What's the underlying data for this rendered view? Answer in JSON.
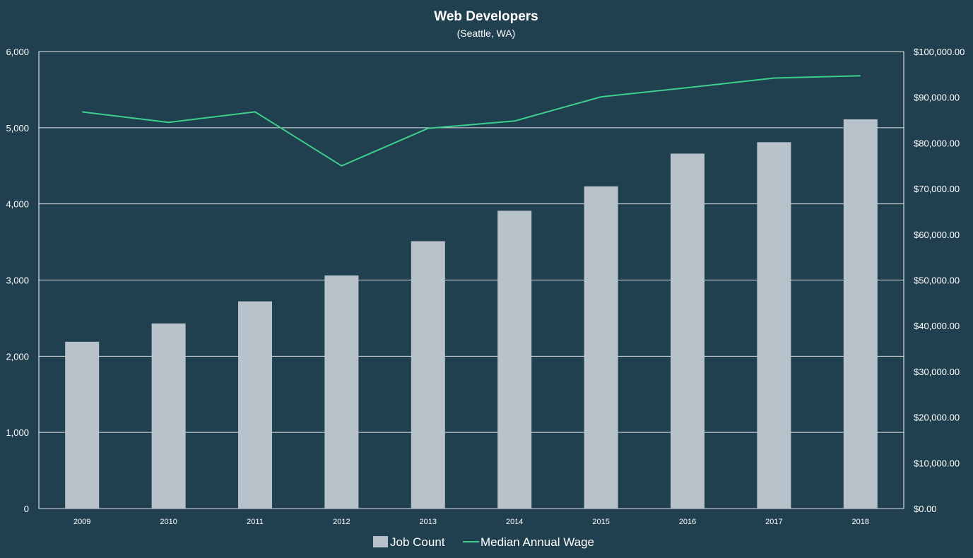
{
  "chart_data": {
    "type": "bar",
    "title": "Web Developers",
    "subtitle": "(Seattle, WA)",
    "categories": [
      "2009",
      "2010",
      "2011",
      "2012",
      "2013",
      "2014",
      "2015",
      "2016",
      "2017",
      "2018"
    ],
    "series": [
      {
        "name": "Job Count",
        "type": "bar",
        "axis": "left",
        "color": "#b7c2cb",
        "values": [
          2190,
          2430,
          2720,
          3060,
          3510,
          3910,
          4230,
          4660,
          4810,
          5110
        ]
      },
      {
        "name": "Median Annual Wage",
        "type": "line",
        "axis": "right",
        "color": "#3ecf8e",
        "values": [
          86800,
          84500,
          86800,
          75000,
          83200,
          84800,
          90100,
          92100,
          94200,
          94700
        ]
      }
    ],
    "y_left": {
      "ylim": [
        0,
        6000
      ],
      "ticks": [
        0,
        1000,
        2000,
        3000,
        4000,
        5000,
        6000
      ],
      "tick_labels": [
        "0",
        "1,000",
        "2,000",
        "3,000",
        "4,000",
        "5,000",
        "6,000"
      ]
    },
    "y_right": {
      "ylim": [
        0,
        100000
      ],
      "ticks": [
        0,
        10000,
        20000,
        30000,
        40000,
        50000,
        60000,
        70000,
        80000,
        90000,
        100000
      ],
      "tick_labels": [
        "$0.00",
        "$10,000.00",
        "$20,000.00",
        "$30,000.00",
        "$40,000.00",
        "$50,000.00",
        "$60,000.00",
        "$70,000.00",
        "$80,000.00",
        "$90,000.00",
        "$100,000.00"
      ]
    },
    "grid": true,
    "legend_placement": "bottom",
    "colors": {
      "background": "#21404f",
      "gridline": "#ffffff",
      "text": "#ffffff"
    }
  }
}
